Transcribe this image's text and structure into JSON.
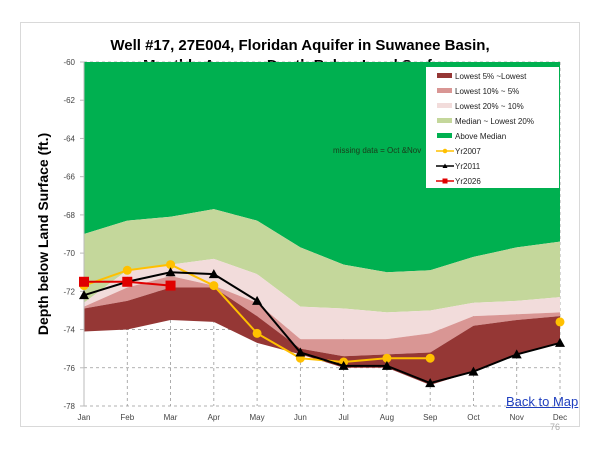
{
  "chart_data": {
    "type": "area",
    "title": [
      "Well #17, 27E004, Floridan Aquifer in Suwanee Basin,",
      "Monthly Average Depth Below  Land Surface"
    ],
    "xlabel": "",
    "ylabel": "Depth below Land Surface (ft.)",
    "categories": [
      "Jan",
      "Feb",
      "Mar",
      "Apr",
      "May",
      "Jun",
      "Jul",
      "Aug",
      "Sep",
      "Oct",
      "Nov",
      "Dec"
    ],
    "ylim": [
      -78,
      -60
    ],
    "yticks": [
      "-60",
      "-62",
      "-64",
      "-66",
      "-68",
      "-70",
      "-72",
      "-74",
      "-76",
      "-78"
    ],
    "grid": "dashed, below bands",
    "legend_position": "top-right",
    "annotation": "missing data = Oct &Nov",
    "bands": [
      {
        "name": "Above Median",
        "color": "#00b050",
        "upper": [
          -60,
          -60,
          -60,
          -60,
          -60,
          -60,
          -60,
          -60,
          -60,
          -60,
          -60,
          -60
        ],
        "lower": [
          -69.0,
          -68.3,
          -68.1,
          -67.7,
          -68.3,
          -69.7,
          -70.6,
          -71.0,
          -70.9,
          -70.2,
          -69.7,
          -69.4
        ]
      },
      {
        "name": "Median ~ Lowest 20%",
        "color": "#c4d79b",
        "upper": [
          -69.0,
          -68.3,
          -68.1,
          -67.7,
          -68.3,
          -69.7,
          -70.6,
          -71.0,
          -70.9,
          -70.2,
          -69.7,
          -69.4
        ],
        "lower": [
          -72.6,
          -70.9,
          -70.6,
          -70.3,
          -71.1,
          -72.8,
          -72.9,
          -73.1,
          -73.0,
          -72.6,
          -72.5,
          -72.3
        ]
      },
      {
        "name": "Lowest 20% ~ 10%",
        "color": "#f2dcdb",
        "upper": [
          -72.6,
          -70.9,
          -70.6,
          -70.3,
          -71.1,
          -72.8,
          -72.9,
          -73.1,
          -73.0,
          -72.6,
          -72.5,
          -72.3
        ],
        "lower": [
          -72.8,
          -71.8,
          -71.2,
          -71.7,
          -72.6,
          -74.5,
          -74.5,
          -74.5,
          -74.2,
          -73.3,
          -73.2,
          -73.1
        ]
      },
      {
        "name": "Lowest 10% ~ 5%",
        "color": "#d99694",
        "upper": [
          -72.8,
          -71.8,
          -71.2,
          -71.7,
          -72.6,
          -74.5,
          -74.5,
          -74.5,
          -74.2,
          -73.3,
          -73.2,
          -73.1
        ],
        "lower": [
          -72.9,
          -72.5,
          -71.8,
          -71.8,
          -73.3,
          -75.0,
          -75.4,
          -75.3,
          -75.2,
          -73.8,
          -73.5,
          -73.3
        ]
      },
      {
        "name": "Lowest 5% ~Lowest",
        "color": "#953735",
        "upper": [
          -72.9,
          -72.5,
          -71.8,
          -71.8,
          -73.3,
          -75.0,
          -75.4,
          -75.3,
          -75.2,
          -73.8,
          -73.5,
          -73.3
        ],
        "lower": [
          -74.1,
          -74.0,
          -73.5,
          -73.6,
          -74.7,
          -75.3,
          -76.0,
          -76.0,
          -76.9,
          -76.2,
          -75.3,
          -74.7
        ]
      }
    ],
    "series": [
      {
        "name": "Yr2007",
        "color": "#ffc000",
        "marker": "circle",
        "values": [
          -71.7,
          -70.9,
          -70.6,
          -71.7,
          -74.2,
          -75.5,
          -75.7,
          -75.5,
          -75.5,
          null,
          null,
          -73.6
        ]
      },
      {
        "name": "Yr2011",
        "color": "#000000",
        "marker": "triangle",
        "values": [
          -72.2,
          -71.5,
          -71.0,
          -71.1,
          -72.5,
          -75.2,
          -75.9,
          -75.9,
          -76.8,
          -76.2,
          -75.3,
          -74.7
        ]
      },
      {
        "name": "Yr2026",
        "color": "#e00000",
        "marker": "square",
        "values": [
          -71.5,
          -71.5,
          -71.7,
          null,
          null,
          null,
          null,
          null,
          null,
          null,
          null,
          null
        ]
      }
    ],
    "legend_order": [
      "Lowest 5% ~Lowest",
      "Lowest 10% ~ 5%",
      "Lowest 20% ~ 10%",
      "Median ~ Lowest 20%",
      "Above Median",
      "Yr2007",
      "Yr2011",
      "Yr2026"
    ]
  },
  "footer": {
    "back_link": "Back to Map",
    "page_number": "76"
  }
}
